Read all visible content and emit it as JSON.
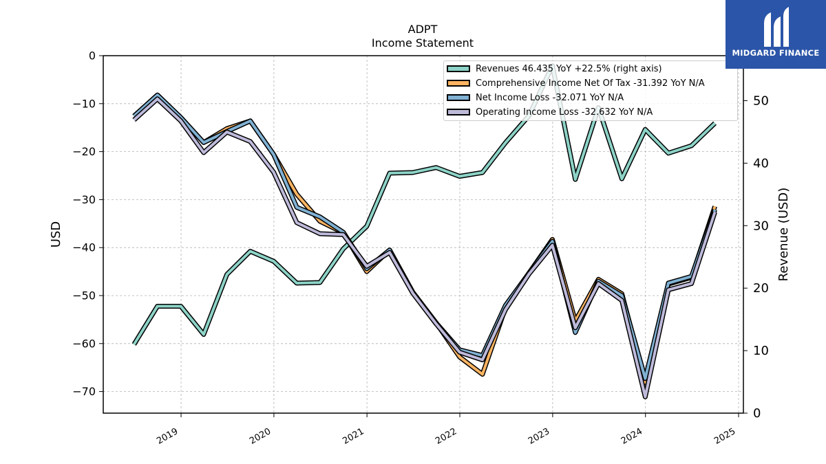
{
  "brand": {
    "name": "MIDGARD FINANCE",
    "color": "#2b55a8"
  },
  "chart_data": {
    "type": "line",
    "title": "ADPT",
    "subtitle": "Income Statement",
    "ylabel": "USD",
    "ylabel_right": "Revenue (USD)",
    "ylim": [
      -74.5,
      0
    ],
    "ylim_right": [
      0,
      57.2
    ],
    "yticks": [
      0,
      -10,
      -20,
      -30,
      -40,
      -50,
      -60,
      -70
    ],
    "yticks_right": [
      0,
      10,
      20,
      30,
      40,
      50
    ],
    "xlim": [
      "2018-03-01",
      "2025-01-20"
    ],
    "xticks": [
      "2019",
      "2020",
      "2021",
      "2022",
      "2023",
      "2024",
      "2025"
    ],
    "grid": true,
    "legend_position": "top-right",
    "x": [
      "2018-06-30",
      "2018-09-30",
      "2018-12-31",
      "2019-03-31",
      "2019-06-30",
      "2019-09-30",
      "2019-12-31",
      "2020-03-31",
      "2020-06-30",
      "2020-09-30",
      "2020-12-31",
      "2021-03-31",
      "2021-06-30",
      "2021-09-30",
      "2021-12-31",
      "2022-03-31",
      "2022-06-30",
      "2022-09-30",
      "2022-12-31",
      "2023-03-31",
      "2023-06-30",
      "2023-09-30",
      "2023-12-31",
      "2024-03-31",
      "2024-06-30",
      "2024-09-30"
    ],
    "series": [
      {
        "name": "Revenues",
        "legend_label": "Revenues  46.435 YoY +22.5% (right axis)",
        "axis": "right",
        "color": "#8dd3c7",
        "values": [
          11.0,
          17.1,
          17.1,
          12.6,
          22.2,
          25.9,
          24.3,
          20.8,
          20.9,
          26.3,
          29.9,
          38.4,
          38.5,
          39.3,
          37.9,
          38.5,
          43.3,
          47.6,
          55.6,
          37.4,
          48.9,
          37.5,
          45.4,
          41.6,
          42.8,
          46.4
        ]
      },
      {
        "name": "Comprehensive Income Net Of Tax",
        "legend_label": "Comprehensive Income Net Of Tax  -31.392 YoY N/A",
        "axis": "left",
        "color": "#fdb462",
        "values": [
          -12.6,
          -8.2,
          -12.9,
          -18.1,
          -15.2,
          -13.6,
          -20.6,
          -28.9,
          -34.5,
          -36.9,
          -45.0,
          -40.5,
          -49.3,
          -55.7,
          -62.8,
          -66.4,
          -52.5,
          -45.3,
          -38.3,
          -55.3,
          -46.6,
          -49.6,
          -68.1,
          -47.6,
          -46.2,
          -31.4
        ]
      },
      {
        "name": "Net Income Loss",
        "legend_label": "Net Income Loss  -32.071 YoY N/A",
        "axis": "left",
        "color": "#80b1d3",
        "values": [
          -12.6,
          -8.2,
          -12.9,
          -18.1,
          -15.8,
          -13.6,
          -20.6,
          -31.6,
          -33.6,
          -36.8,
          -44.4,
          -40.5,
          -49.3,
          -55.7,
          -61.3,
          -62.5,
          -52.0,
          -45.3,
          -38.7,
          -57.7,
          -47.0,
          -50.0,
          -67.3,
          -47.4,
          -46.0,
          -32.1
        ]
      },
      {
        "name": "Operating Income Loss",
        "legend_label": "Operating Income Loss  -32.632 YoY N/A",
        "axis": "left",
        "color": "#bebada",
        "values": [
          -13.4,
          -9.0,
          -13.6,
          -20.2,
          -15.9,
          -17.9,
          -24.3,
          -34.8,
          -37.1,
          -37.3,
          -43.9,
          -41.0,
          -49.5,
          -55.9,
          -61.8,
          -63.4,
          -52.9,
          -45.5,
          -39.5,
          -56.7,
          -47.5,
          -51.0,
          -71.1,
          -48.8,
          -47.5,
          -32.6
        ]
      }
    ]
  }
}
